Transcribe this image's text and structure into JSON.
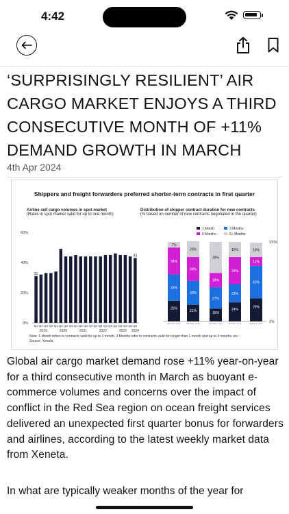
{
  "status_bar": {
    "time": "4:42"
  },
  "article": {
    "headline": "‘SURPRISINGLY RESILIENT’ AIR CARGO MARKET ENJOYS A THIRD CONSECUTIVE MONTH OF +11% DEMAND GROWTH IN MARCH",
    "date": "4th Apr 2024",
    "paragraph1": "Global air cargo market demand rose +11% year-on-year for a third consecutive month in March as buoyant e-commerce volumes and concerns over the impact of conflict in the Red Sea region on ocean freight services delivered an unexpected first quarter bonus for forwarders and airlines, according to the latest weekly market data from Xeneta.",
    "paragraph2": "In what are typically weaker months of the year for"
  },
  "figure": {
    "title": "Shippers and freight forwarders preferred shorter-term contracts in first quarter",
    "left_title": "Airline sell cargo volumes in spot market",
    "left_subtitle": "(Rates in spot market valid for up to one month)",
    "right_title": "Distribution of shipper contract duration for new contracts",
    "right_subtitle": "(% based on number of new contracts negotiated in the quarter)",
    "note": "Note: 1 Month refers to contracts valid for up to 1 month, 3 Months refer to contracts valid for longer than 1 month and up to 3 months, etc.",
    "source": "Source: Xeneta",
    "colors": {
      "bar": "#141a33",
      "m1": "#141a33",
      "m3": "#1b6fe0",
      "m6": "#d21fd6",
      "m6plus": "#cfd0d6"
    }
  },
  "chart_data": [
    {
      "type": "bar",
      "title": "Airline sell cargo volumes in spot market",
      "subtitle": "(Rates in spot market valid for up to one month)",
      "x": [
        "2019Q1",
        "2019Q2",
        "2019Q3",
        "2019Q4",
        "2020Q1",
        "2020Q2",
        "2020Q3",
        "2020Q4",
        "2021Q1",
        "2021Q2",
        "2021Q3",
        "2021Q4",
        "2022Q1",
        "2022Q2",
        "2022Q3",
        "2022Q4",
        "2023Q1",
        "2023Q2",
        "2023Q3",
        "2023Q4",
        "2024Q1"
      ],
      "quarter_labels": [
        "Q1",
        "Q2",
        "Q3",
        "Q4",
        "Q1",
        "Q2",
        "Q3",
        "Q4",
        "Q1",
        "Q2",
        "Q3",
        "Q4",
        "Q1",
        "Q2",
        "Q3",
        "Q4",
        "Q1",
        "Q2",
        "Q3",
        "Q4",
        "Q1"
      ],
      "year_labels": [
        "2019",
        "2020",
        "2021",
        "2022",
        "2023",
        "2024"
      ],
      "values": [
        31,
        32,
        33,
        33,
        34,
        49,
        44,
        44,
        45,
        44,
        44,
        44,
        44,
        44,
        45,
        45,
        46,
        45,
        45,
        44,
        43
      ],
      "data_labels": {
        "first": "31",
        "last": "43"
      },
      "y_ticks": [
        "0%",
        "20%",
        "40%",
        "60%"
      ],
      "ylim": [
        0,
        60
      ]
    },
    {
      "type": "bar",
      "stacked": true,
      "title": "Distribution of shipper contract duration for new contracts",
      "subtitle": "(% based on number of new contracts negotiated in the quarter)",
      "categories": [
        "2023 Q1",
        "2023 Q2",
        "2023 Q3",
        "2023 Q4",
        "2024 Q1"
      ],
      "series": [
        {
          "name": "1 Month",
          "values": [
            26,
            21,
            16,
            24,
            29
          ],
          "labels": [
            "26%",
            "21%",
            "16%",
            "24%",
            "29%"
          ]
        },
        {
          "name": "3 Months",
          "values": [
            33,
            30,
            27,
            23,
            41
          ],
          "labels": [
            "33%",
            "30%",
            "27%",
            "23%",
            "41%"
          ]
        },
        {
          "name": "6 Months",
          "values": [
            34,
            30,
            18,
            34,
            11
          ],
          "labels": [
            "34%",
            "30%",
            "18%",
            "34%",
            "11%"
          ]
        },
        {
          "name": "6+ Months",
          "values": [
            7,
            20,
            39,
            19,
            18
          ],
          "labels": [
            "7%",
            "20%",
            "39%",
            "19%",
            "18%"
          ]
        }
      ],
      "y_ticks": [
        "0%",
        "100%"
      ],
      "ylim": [
        0,
        100
      ],
      "legend_position": "top"
    }
  ]
}
